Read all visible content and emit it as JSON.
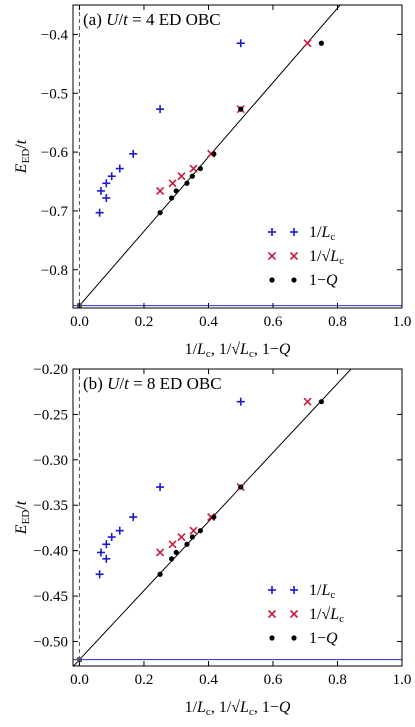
{
  "chart_data": [
    {
      "type": "scatter",
      "title": "(a) U/t = 4 ED OBC",
      "title_parts": {
        "label": "(a) ",
        "sym_u": "U",
        "slash": "/",
        "sym_t": "t",
        "rest": " = 4 ED OBC"
      },
      "xlabel": "1/Lc, 1/√Lc, 1−Q",
      "ylabel": "E_ED/t",
      "xlim": [
        -0.02,
        1.0
      ],
      "ylim": [
        -0.865,
        -0.35
      ],
      "xticks": [
        "0.0",
        "0.2",
        "0.4",
        "0.6",
        "0.8",
        "1.0"
      ],
      "yticks": [
        "−0.4",
        "−0.5",
        "−0.6",
        "−0.7",
        "−0.8"
      ],
      "ytick_values": [
        -0.4,
        -0.5,
        -0.6,
        -0.7,
        -0.8
      ],
      "legend_position": "lower-right",
      "extrapolated_value": -0.861,
      "fit_line": {
        "intercept": -0.861,
        "slope": 0.632
      },
      "series": [
        {
          "name": "1/Lc",
          "marker": "plus",
          "color": "#1a1acc",
          "x": [
            0.0625,
            0.0667,
            0.0833,
            0.0833,
            0.1,
            0.125,
            0.1667,
            0.25,
            0.5
          ],
          "y": [
            -0.703,
            -0.666,
            -0.678,
            -0.653,
            -0.641,
            -0.628,
            -0.603,
            -0.527,
            -0.415
          ]
        },
        {
          "name": "1/√Lc",
          "marker": "cross",
          "color": "#cc1a3c",
          "x": [
            0.25,
            0.2887,
            0.3162,
            0.3536,
            0.4082,
            0.5,
            0.7071
          ],
          "y": [
            -0.666,
            -0.653,
            -0.641,
            -0.628,
            -0.603,
            -0.527,
            -0.415
          ]
        },
        {
          "name": "1−Q",
          "marker": "dot",
          "color": "#000000",
          "x": [
            0.25,
            0.2857,
            0.3,
            0.3333,
            0.35,
            0.375,
            0.4167,
            0.5,
            0.75
          ],
          "y": [
            -0.703,
            -0.678,
            -0.666,
            -0.653,
            -0.641,
            -0.628,
            -0.603,
            -0.527,
            -0.415
          ]
        }
      ]
    },
    {
      "type": "scatter",
      "title": "(b) U/t = 8 ED OBC",
      "title_parts": {
        "label": "(b) ",
        "sym_u": "U",
        "slash": "/",
        "sym_t": "t",
        "rest": " = 8 ED OBC"
      },
      "xlabel": "1/Lc, 1/√Lc, 1−Q",
      "ylabel": "E_ED/t",
      "xlim": [
        -0.02,
        1.0
      ],
      "ylim": [
        -0.527,
        -0.2
      ],
      "xticks": [
        "0.0",
        "0.2",
        "0.4",
        "0.6",
        "0.8",
        "1.0"
      ],
      "yticks": [
        "−0.20",
        "−0.25",
        "−0.30",
        "−0.35",
        "−0.40",
        "−0.45",
        "−0.50"
      ],
      "ytick_values": [
        -0.2,
        -0.25,
        -0.3,
        -0.35,
        -0.4,
        -0.45,
        -0.5
      ],
      "legend_position": "lower-right",
      "extrapolated_value": -0.52,
      "fit_line": {
        "intercept": -0.52,
        "slope": 0.38
      },
      "series": [
        {
          "name": "1/Lc",
          "marker": "plus",
          "color": "#1a1acc",
          "x": [
            0.0625,
            0.0667,
            0.0833,
            0.0833,
            0.1,
            0.125,
            0.1667,
            0.25,
            0.5
          ],
          "y": [
            -0.426,
            -0.402,
            -0.409,
            -0.393,
            -0.385,
            -0.378,
            -0.363,
            -0.33,
            -0.236
          ]
        },
        {
          "name": "1/√Lc",
          "marker": "cross",
          "color": "#cc1a3c",
          "x": [
            0.25,
            0.2887,
            0.3162,
            0.3536,
            0.4082,
            0.5,
            0.7071
          ],
          "y": [
            -0.402,
            -0.393,
            -0.385,
            -0.378,
            -0.363,
            -0.33,
            -0.236
          ]
        },
        {
          "name": "1−Q",
          "marker": "dot",
          "color": "#000000",
          "x": [
            0.25,
            0.2857,
            0.3,
            0.3333,
            0.35,
            0.375,
            0.4167,
            0.5,
            0.75
          ],
          "y": [
            -0.426,
            -0.409,
            -0.402,
            -0.393,
            -0.385,
            -0.378,
            -0.363,
            -0.33,
            -0.236
          ]
        }
      ]
    }
  ]
}
